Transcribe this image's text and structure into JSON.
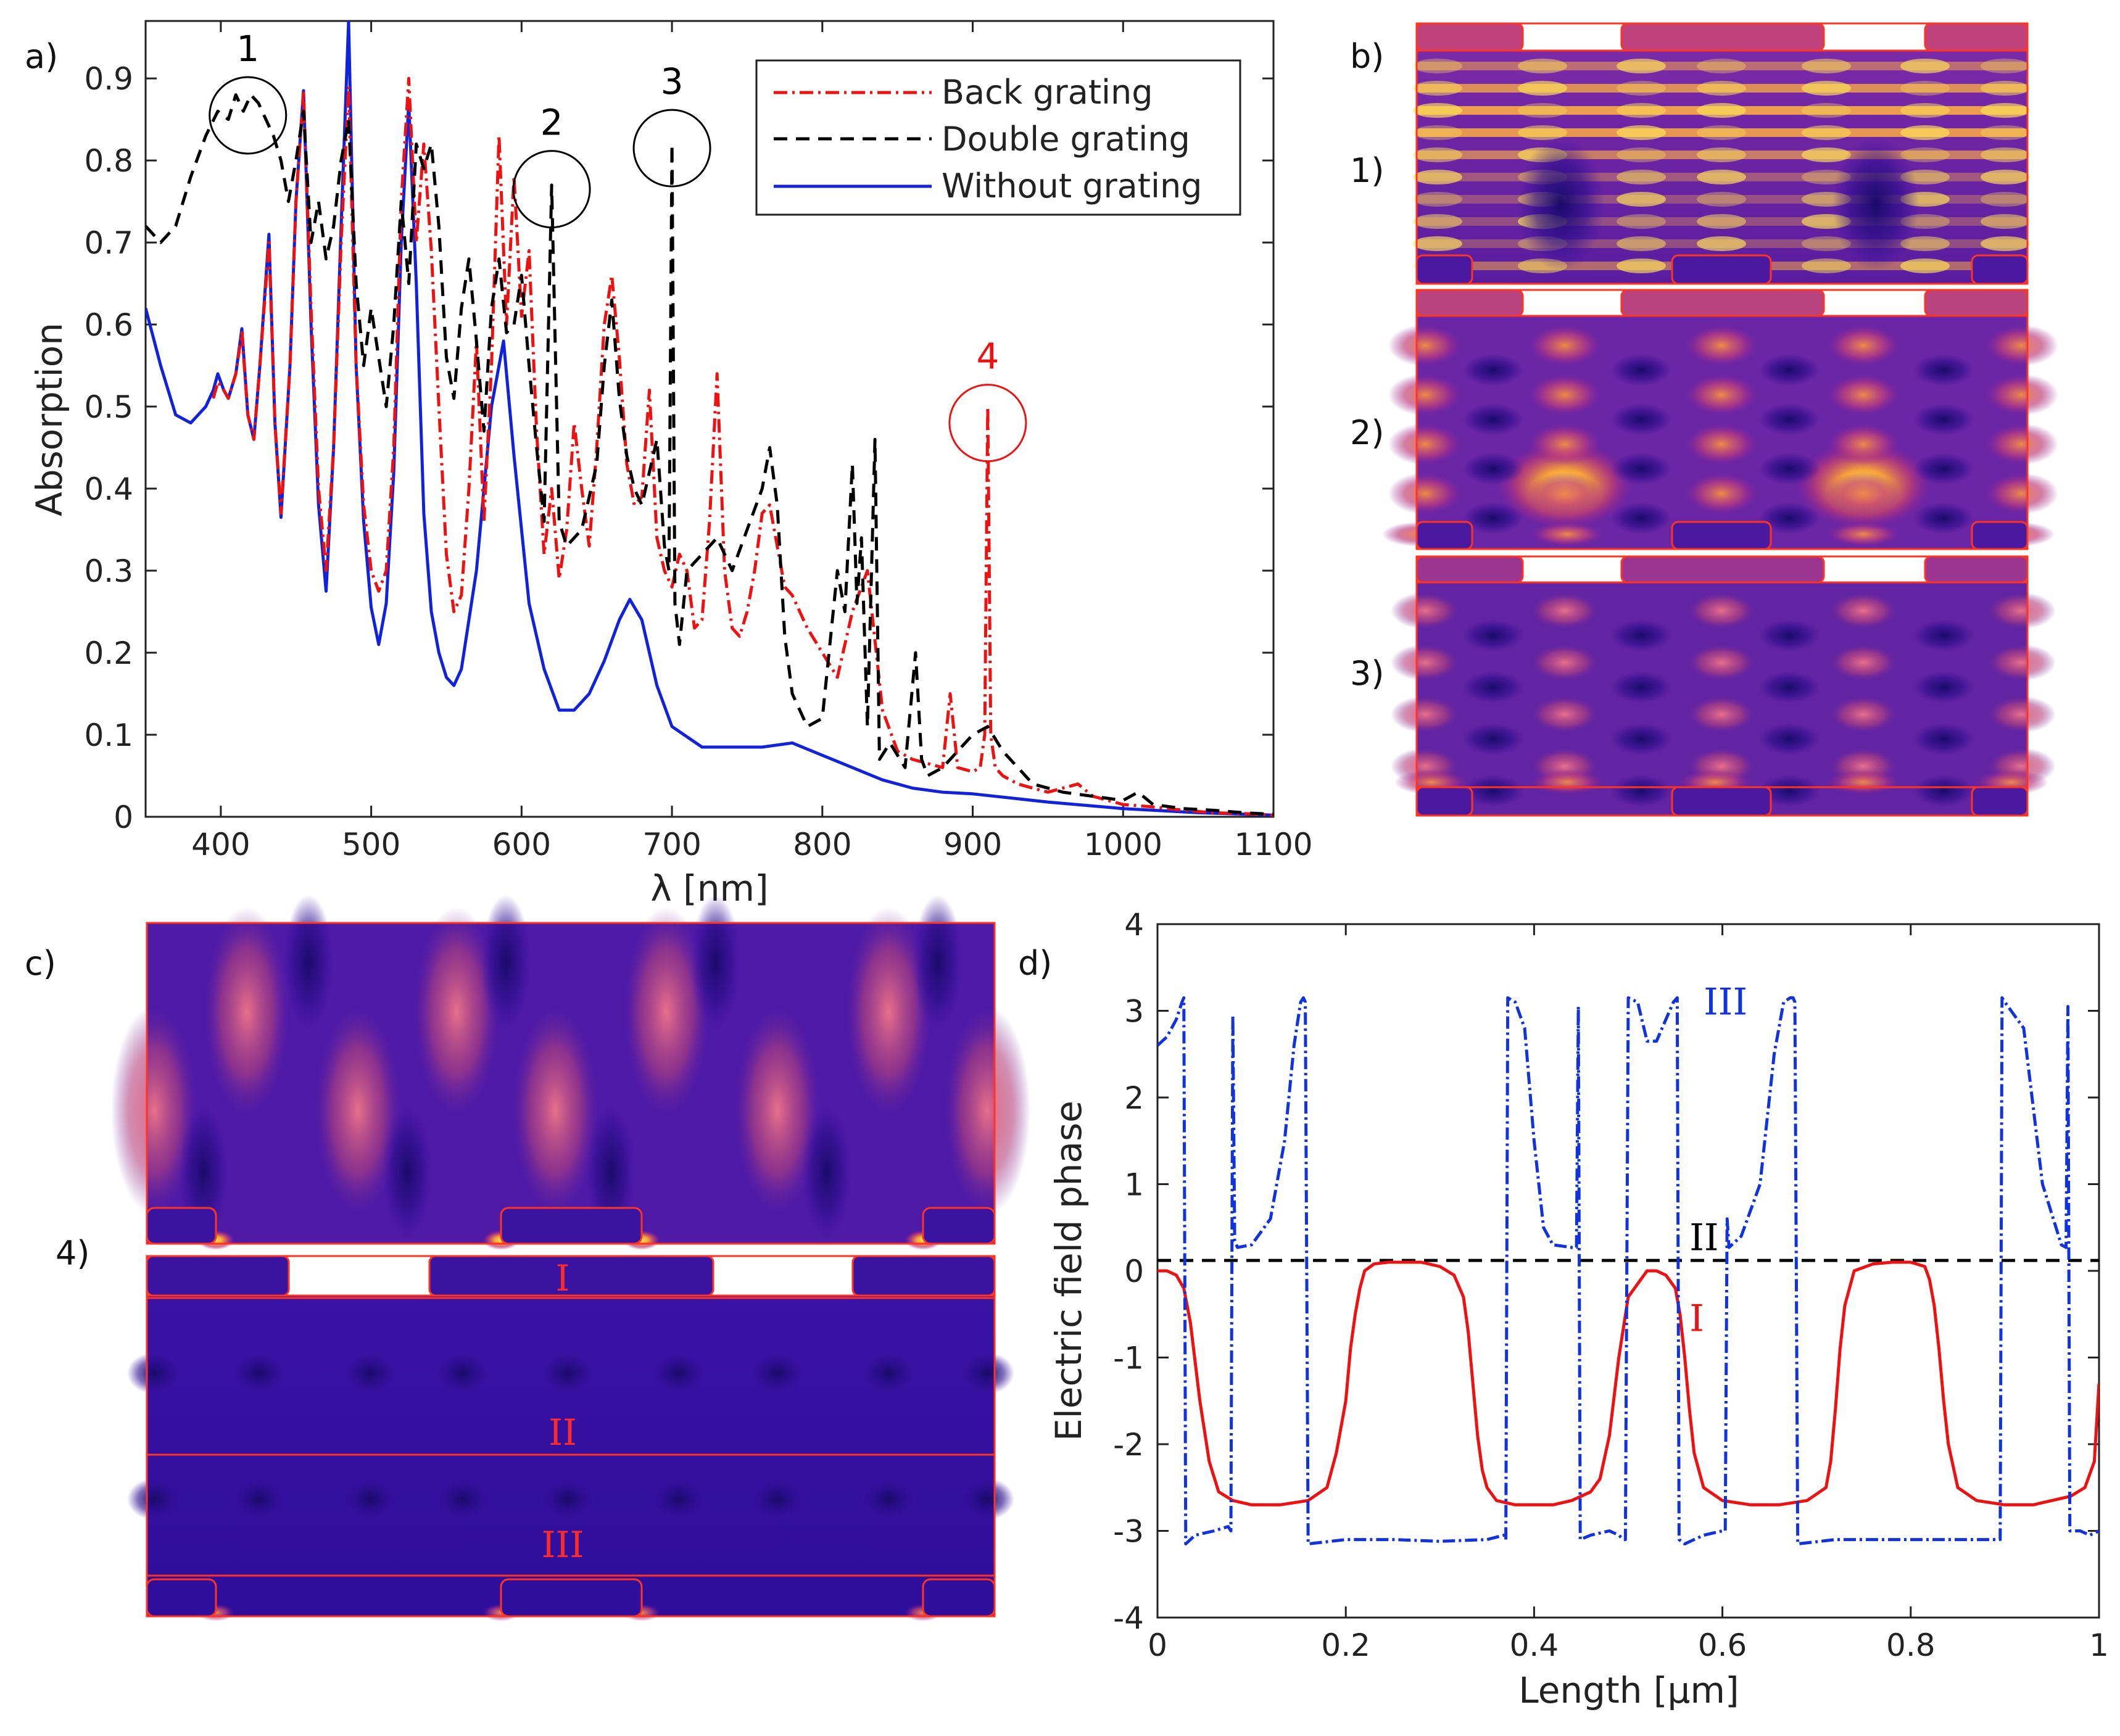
{
  "panel_labels": {
    "a": "a)",
    "b": "b)",
    "c": "c)",
    "d": "d)"
  },
  "field_map_labels": {
    "m1": "1)",
    "m2": "2)",
    "m3": "3)",
    "m4": "4)"
  },
  "field_map_lines": {
    "I": "I",
    "II": "II",
    "III": "III"
  },
  "colors": {
    "back": "#ee1111",
    "double": "#000000",
    "without": "#1122dd",
    "phase_I": "#ee1111",
    "phase_II": "#000000",
    "phase_III": "#1133dd",
    "structure_outline": "#ff3322"
  },
  "chart_data": [
    {
      "id": "a",
      "type": "line",
      "xlabel": "λ [nm]",
      "ylabel": "Absorption",
      "xlim": [
        350,
        1100
      ],
      "ylim": [
        0,
        0.97
      ],
      "xticks": [
        400,
        500,
        600,
        700,
        800,
        900,
        1000,
        1100
      ],
      "yticks": [
        0,
        0.1,
        0.2,
        0.3,
        0.4,
        0.5,
        0.6,
        0.7,
        0.8,
        0.9
      ],
      "ytick_labels": [
        "0",
        "0.1",
        "0.2",
        "0.3",
        "0.4",
        "0.5",
        "0.6",
        "0.7",
        "0.8",
        "0.9"
      ],
      "legend": {
        "position": "top-right",
        "entries": [
          "Back grating",
          "Double grating",
          "Without grating"
        ]
      },
      "annotations": [
        {
          "label": "1",
          "x": 418,
          "y": 0.855,
          "color": "black"
        },
        {
          "label": "2",
          "x": 620,
          "y": 0.765,
          "color": "black"
        },
        {
          "label": "3",
          "x": 700,
          "y": 0.815,
          "color": "black"
        },
        {
          "label": "4",
          "x": 910,
          "y": 0.48,
          "color": "red"
        }
      ],
      "series": [
        {
          "name": "Without grating",
          "style": "solid",
          "x": [
            350,
            360,
            370,
            380,
            390,
            395,
            398,
            402,
            405,
            410,
            414,
            418,
            422,
            426,
            432,
            436,
            440,
            446,
            450,
            455,
            460,
            465,
            470,
            475,
            480,
            485,
            490,
            495,
            500,
            505,
            510,
            515,
            520,
            525,
            530,
            535,
            540,
            545,
            550,
            555,
            560,
            570,
            580,
            588,
            595,
            605,
            615,
            625,
            635,
            645,
            655,
            665,
            672,
            680,
            690,
            700,
            720,
            740,
            760,
            780,
            800,
            820,
            840,
            860,
            880,
            900,
            950,
            1000,
            1050,
            1100
          ],
          "y": [
            0.62,
            0.55,
            0.49,
            0.48,
            0.5,
            0.52,
            0.54,
            0.52,
            0.51,
            0.54,
            0.595,
            0.49,
            0.46,
            0.55,
            0.71,
            0.48,
            0.365,
            0.55,
            0.75,
            0.885,
            0.6,
            0.38,
            0.275,
            0.45,
            0.72,
            0.97,
            0.55,
            0.36,
            0.255,
            0.21,
            0.26,
            0.42,
            0.7,
            0.87,
            0.65,
            0.37,
            0.25,
            0.2,
            0.17,
            0.16,
            0.18,
            0.3,
            0.5,
            0.58,
            0.44,
            0.26,
            0.18,
            0.13,
            0.13,
            0.15,
            0.19,
            0.24,
            0.265,
            0.24,
            0.16,
            0.11,
            0.085,
            0.085,
            0.085,
            0.09,
            0.075,
            0.06,
            0.045,
            0.035,
            0.03,
            0.028,
            0.018,
            0.01,
            0.005,
            0.002
          ]
        },
        {
          "name": "Back grating",
          "style": "dashdot",
          "x": [
            395,
            398,
            402,
            405,
            410,
            414,
            418,
            422,
            426,
            432,
            436,
            440,
            446,
            450,
            455,
            460,
            465,
            470,
            475,
            480,
            485,
            490,
            495,
            500,
            505,
            510,
            515,
            520,
            525,
            530,
            535,
            540,
            545,
            550,
            555,
            560,
            565,
            570,
            575,
            580,
            585,
            590,
            595,
            600,
            605,
            610,
            615,
            620,
            625,
            630,
            635,
            640,
            645,
            650,
            655,
            660,
            665,
            670,
            675,
            680,
            685,
            690,
            695,
            700,
            705,
            710,
            715,
            720,
            725,
            730,
            735,
            740,
            745,
            750,
            755,
            760,
            765,
            770,
            775,
            780,
            790,
            800,
            810,
            820,
            830,
            840,
            850,
            860,
            870,
            880,
            885,
            890,
            900,
            905,
            908,
            910,
            912,
            915,
            920,
            930,
            940,
            950,
            960,
            970,
            980,
            990,
            1000,
            1020,
            1040,
            1060,
            1080,
            1100
          ],
          "y": [
            0.51,
            0.53,
            0.52,
            0.51,
            0.54,
            0.59,
            0.49,
            0.46,
            0.55,
            0.7,
            0.48,
            0.37,
            0.55,
            0.75,
            0.885,
            0.62,
            0.4,
            0.3,
            0.45,
            0.7,
            0.89,
            0.55,
            0.38,
            0.3,
            0.275,
            0.3,
            0.45,
            0.75,
            0.9,
            0.7,
            0.82,
            0.69,
            0.5,
            0.32,
            0.25,
            0.27,
            0.4,
            0.58,
            0.36,
            0.55,
            0.83,
            0.6,
            0.78,
            0.61,
            0.69,
            0.47,
            0.32,
            0.4,
            0.29,
            0.35,
            0.48,
            0.4,
            0.33,
            0.45,
            0.6,
            0.66,
            0.56,
            0.43,
            0.38,
            0.39,
            0.52,
            0.34,
            0.3,
            0.28,
            0.32,
            0.3,
            0.23,
            0.24,
            0.36,
            0.54,
            0.3,
            0.23,
            0.22,
            0.25,
            0.3,
            0.37,
            0.38,
            0.33,
            0.28,
            0.27,
            0.23,
            0.2,
            0.17,
            0.25,
            0.3,
            0.13,
            0.08,
            0.07,
            0.065,
            0.06,
            0.15,
            0.06,
            0.055,
            0.06,
            0.1,
            0.5,
            0.1,
            0.06,
            0.05,
            0.04,
            0.035,
            0.03,
            0.035,
            0.04,
            0.025,
            0.02,
            0.015,
            0.012,
            0.008,
            0.005,
            0.004,
            0.002
          ]
        },
        {
          "name": "Double grating",
          "style": "dashed",
          "x": [
            350,
            360,
            370,
            380,
            390,
            398,
            405,
            410,
            415,
            420,
            425,
            430,
            435,
            440,
            445,
            450,
            455,
            460,
            465,
            470,
            475,
            480,
            485,
            490,
            495,
            500,
            505,
            510,
            515,
            520,
            525,
            530,
            535,
            540,
            545,
            550,
            555,
            560,
            565,
            570,
            575,
            580,
            585,
            590,
            595,
            600,
            605,
            610,
            615,
            620,
            625,
            630,
            640,
            650,
            655,
            660,
            665,
            670,
            675,
            680,
            690,
            695,
            698,
            700,
            702,
            705,
            710,
            720,
            730,
            740,
            750,
            760,
            765,
            770,
            775,
            780,
            790,
            800,
            810,
            815,
            820,
            823,
            826,
            830,
            835,
            838,
            845,
            855,
            862,
            866,
            870,
            880,
            890,
            900,
            910,
            920,
            940,
            960,
            980,
            1000,
            1010,
            1020,
            1040,
            1060,
            1080,
            1100
          ],
          "y": [
            0.72,
            0.7,
            0.72,
            0.78,
            0.83,
            0.86,
            0.85,
            0.88,
            0.86,
            0.88,
            0.87,
            0.85,
            0.83,
            0.8,
            0.75,
            0.8,
            0.86,
            0.7,
            0.75,
            0.68,
            0.72,
            0.8,
            0.85,
            0.65,
            0.55,
            0.62,
            0.56,
            0.5,
            0.6,
            0.75,
            0.65,
            0.82,
            0.79,
            0.82,
            0.72,
            0.56,
            0.51,
            0.62,
            0.68,
            0.58,
            0.47,
            0.62,
            0.68,
            0.59,
            0.6,
            0.66,
            0.55,
            0.45,
            0.36,
            0.77,
            0.36,
            0.33,
            0.35,
            0.43,
            0.55,
            0.63,
            0.51,
            0.44,
            0.4,
            0.38,
            0.46,
            0.33,
            0.3,
            0.82,
            0.26,
            0.21,
            0.3,
            0.32,
            0.34,
            0.3,
            0.35,
            0.4,
            0.45,
            0.38,
            0.22,
            0.15,
            0.11,
            0.12,
            0.3,
            0.25,
            0.43,
            0.26,
            0.34,
            0.11,
            0.46,
            0.07,
            0.09,
            0.06,
            0.2,
            0.07,
            0.05,
            0.06,
            0.08,
            0.1,
            0.11,
            0.08,
            0.04,
            0.03,
            0.025,
            0.02,
            0.03,
            0.015,
            0.01,
            0.008,
            0.005,
            0.003
          ]
        }
      ]
    },
    {
      "id": "d",
      "type": "line",
      "xlabel": "Length [μm]",
      "ylabel": "Electric field phase",
      "xlim": [
        0,
        1
      ],
      "ylim": [
        -4,
        4
      ],
      "xticks": [
        0,
        0.2,
        0.4,
        0.6,
        0.8,
        1
      ],
      "xtick_labels": [
        "0",
        "0.2",
        "0.4",
        "0.6",
        "0.8",
        "1"
      ],
      "yticks": [
        -4,
        -3,
        -2,
        -1,
        0,
        1,
        2,
        3,
        4
      ],
      "ytick_labels": [
        "-4",
        "-3",
        "-2",
        "-1",
        "0",
        "1",
        "2",
        "3",
        "4"
      ],
      "annotations": [
        {
          "label": "I",
          "x": 0.565,
          "y": -0.55,
          "color": "red"
        },
        {
          "label": "II",
          "x": 0.565,
          "y": 0.38,
          "color": "black"
        },
        {
          "label": "III",
          "x": 0.58,
          "y": 3.1,
          "color": "blue"
        }
      ],
      "series": [
        {
          "name": "I",
          "style": "solid",
          "x": [
            0,
            0.01,
            0.02,
            0.028,
            0.035,
            0.045,
            0.055,
            0.065,
            0.08,
            0.1,
            0.13,
            0.16,
            0.18,
            0.19,
            0.2,
            0.205,
            0.21,
            0.215,
            0.22,
            0.23,
            0.245,
            0.26,
            0.28,
            0.3,
            0.315,
            0.325,
            0.33,
            0.335,
            0.34,
            0.345,
            0.35,
            0.36,
            0.38,
            0.4,
            0.42,
            0.44,
            0.46,
            0.47,
            0.48,
            0.49,
            0.5,
            0.52,
            0.53,
            0.54,
            0.55,
            0.555,
            0.56,
            0.565,
            0.57,
            0.58,
            0.6,
            0.63,
            0.66,
            0.69,
            0.71,
            0.715,
            0.72,
            0.725,
            0.73,
            0.74,
            0.76,
            0.78,
            0.8,
            0.815,
            0.82,
            0.825,
            0.83,
            0.835,
            0.84,
            0.85,
            0.87,
            0.9,
            0.93,
            0.95,
            0.97,
            0.985,
            0.995,
            1.0
          ],
          "y": [
            0,
            0,
            -0.05,
            -0.2,
            -0.6,
            -1.5,
            -2.2,
            -2.55,
            -2.65,
            -2.7,
            -2.7,
            -2.65,
            -2.5,
            -2.1,
            -1.5,
            -0.9,
            -0.5,
            -0.2,
            0,
            0.08,
            0.1,
            0.1,
            0.1,
            0.05,
            -0.05,
            -0.3,
            -0.7,
            -1.3,
            -1.9,
            -2.3,
            -2.5,
            -2.65,
            -2.7,
            -2.7,
            -2.7,
            -2.65,
            -2.55,
            -2.4,
            -1.9,
            -1.0,
            -0.3,
            0,
            0,
            -0.05,
            -0.2,
            -0.5,
            -1.0,
            -1.6,
            -2.1,
            -2.5,
            -2.65,
            -2.7,
            -2.7,
            -2.65,
            -2.5,
            -2.2,
            -1.6,
            -0.9,
            -0.4,
            0,
            0.08,
            0.1,
            0.1,
            0.05,
            -0.1,
            -0.4,
            -0.9,
            -1.5,
            -2.0,
            -2.5,
            -2.65,
            -2.7,
            -2.7,
            -2.65,
            -2.6,
            -2.5,
            -2.2,
            -1.3
          ]
        },
        {
          "name": "II",
          "style": "dashed",
          "x": [
            0,
            1
          ],
          "y": [
            0.12,
            0.12
          ]
        },
        {
          "name": "III",
          "style": "dashdot",
          "x": [
            0,
            0.01,
            0.02,
            0.026,
            0.028,
            0.03,
            0.04,
            0.06,
            0.075,
            0.078,
            0.08,
            0.082,
            0.085,
            0.1,
            0.12,
            0.135,
            0.145,
            0.152,
            0.155,
            0.157,
            0.16,
            0.2,
            0.25,
            0.3,
            0.35,
            0.368,
            0.37,
            0.372,
            0.38,
            0.39,
            0.4,
            0.41,
            0.42,
            0.44,
            0.445,
            0.447,
            0.449,
            0.46,
            0.48,
            0.49,
            0.495,
            0.497,
            0.5,
            0.51,
            0.52,
            0.53,
            0.54,
            0.548,
            0.552,
            0.554,
            0.56,
            0.58,
            0.6,
            0.603,
            0.605,
            0.607,
            0.61,
            0.62,
            0.64,
            0.655,
            0.665,
            0.672,
            0.675,
            0.677,
            0.68,
            0.72,
            0.78,
            0.84,
            0.88,
            0.893,
            0.895,
            0.897,
            0.9,
            0.92,
            0.94,
            0.96,
            0.965,
            0.967,
            0.969,
            0.972,
            0.98,
            0.99,
            1.0
          ],
          "y": [
            2.6,
            2.7,
            2.9,
            3.1,
            3.15,
            -3.15,
            -3.05,
            -3.0,
            -2.95,
            -3.0,
            2.95,
            0.35,
            0.27,
            0.3,
            0.6,
            1.5,
            2.6,
            3.1,
            3.15,
            3.1,
            -3.15,
            -3.1,
            -3.1,
            -3.12,
            -3.1,
            -3.05,
            -3.1,
            3.15,
            3.1,
            2.8,
            1.5,
            0.5,
            0.3,
            0.27,
            0.27,
            3.05,
            -3.1,
            -3.05,
            -3.0,
            -3.05,
            -3.1,
            -3.1,
            3.15,
            3.1,
            2.65,
            2.65,
            2.9,
            3.1,
            3.15,
            -3.1,
            -3.15,
            -3.05,
            -3.0,
            -3.0,
            0.6,
            0.27,
            0.3,
            0.4,
            1.0,
            2.5,
            3.1,
            3.15,
            3.15,
            3.1,
            -3.15,
            -3.1,
            -3.1,
            -3.1,
            -3.1,
            -3.1,
            -3.1,
            3.15,
            3.1,
            2.8,
            1.0,
            0.3,
            0.27,
            3.05,
            -3.0,
            -3.0,
            -3.0,
            -3.05,
            -3.0
          ]
        }
      ]
    }
  ]
}
